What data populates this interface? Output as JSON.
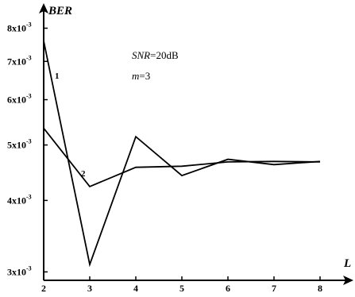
{
  "chart_data": {
    "type": "line",
    "title": "",
    "xlabel": "L",
    "ylabel": "BER",
    "x": [
      2,
      3,
      4,
      5,
      6,
      7,
      8
    ],
    "xlim": [
      2,
      8
    ],
    "yscale": "log",
    "ylim": [
      0.0029,
      0.0083
    ],
    "x_ticks": [
      "2",
      "3",
      "4",
      "5",
      "6",
      "7",
      "8"
    ],
    "y_ticks": [
      {
        "value": 0.003,
        "mantissa": "3",
        "exp": "-3"
      },
      {
        "value": 0.004,
        "mantissa": "4",
        "exp": "-3"
      },
      {
        "value": 0.005,
        "mantissa": "5",
        "exp": "-3"
      },
      {
        "value": 0.006,
        "mantissa": "6",
        "exp": "-3"
      },
      {
        "value": 0.007,
        "mantissa": "7",
        "exp": "-3"
      },
      {
        "value": 0.008,
        "mantissa": "8",
        "exp": "-3"
      }
    ],
    "series": [
      {
        "name": "1",
        "values": [
          0.0076,
          0.00309,
          0.00517,
          0.00442,
          0.00472,
          0.00462,
          0.00468
        ]
      },
      {
        "name": "2",
        "values": [
          0.00535,
          0.00423,
          0.00457,
          0.00459,
          0.00467,
          0.00468,
          0.00467
        ]
      }
    ],
    "annotations": [
      {
        "var": "SNR",
        "text": "=20dB"
      },
      {
        "var": "m",
        "text": "=3"
      }
    ],
    "grid": false,
    "legend": "none"
  }
}
